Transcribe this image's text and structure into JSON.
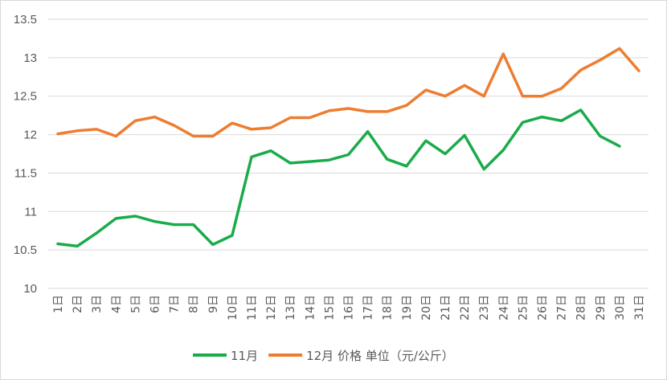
{
  "chart_data": {
    "type": "line",
    "title": "",
    "xlabel": "",
    "ylabel": "",
    "categories": [
      "1日",
      "2日",
      "3日",
      "4日",
      "5日",
      "6日",
      "7日",
      "8日",
      "9日",
      "10日",
      "11日",
      "12日",
      "13日",
      "14日",
      "15日",
      "16日",
      "17日",
      "18日",
      "19日",
      "20日",
      "21日",
      "22日",
      "23日",
      "24日",
      "25日",
      "26日",
      "27日",
      "28日",
      "29日",
      "30日",
      "31日"
    ],
    "ylim": [
      10,
      13.5
    ],
    "yticks": [
      "10",
      "10.5",
      "11",
      "11.5",
      "12",
      "12.5",
      "13",
      "13.5"
    ],
    "grid": true,
    "legend_position": "bottom",
    "series": [
      {
        "name": "11月",
        "color": "#1aab4a",
        "values": [
          10.58,
          10.55,
          10.72,
          10.91,
          10.94,
          10.87,
          10.83,
          10.83,
          10.57,
          10.69,
          11.71,
          11.79,
          11.63,
          11.65,
          11.67,
          11.74,
          12.04,
          11.68,
          11.59,
          11.92,
          11.75,
          11.99,
          11.55,
          11.8,
          12.16,
          12.23,
          12.18,
          12.32,
          11.98,
          11.85,
          null
        ]
      },
      {
        "name": "12月 价格 单位（元/公斤）",
        "color": "#ed7d31",
        "values": [
          12.01,
          12.05,
          12.07,
          11.98,
          12.18,
          12.23,
          12.12,
          11.98,
          11.98,
          12.15,
          12.07,
          12.09,
          12.22,
          12.22,
          12.31,
          12.34,
          12.3,
          12.3,
          12.38,
          12.58,
          12.5,
          12.64,
          12.5,
          13.05,
          12.5,
          12.5,
          12.6,
          12.84,
          12.97,
          13.12,
          12.83
        ]
      }
    ]
  }
}
